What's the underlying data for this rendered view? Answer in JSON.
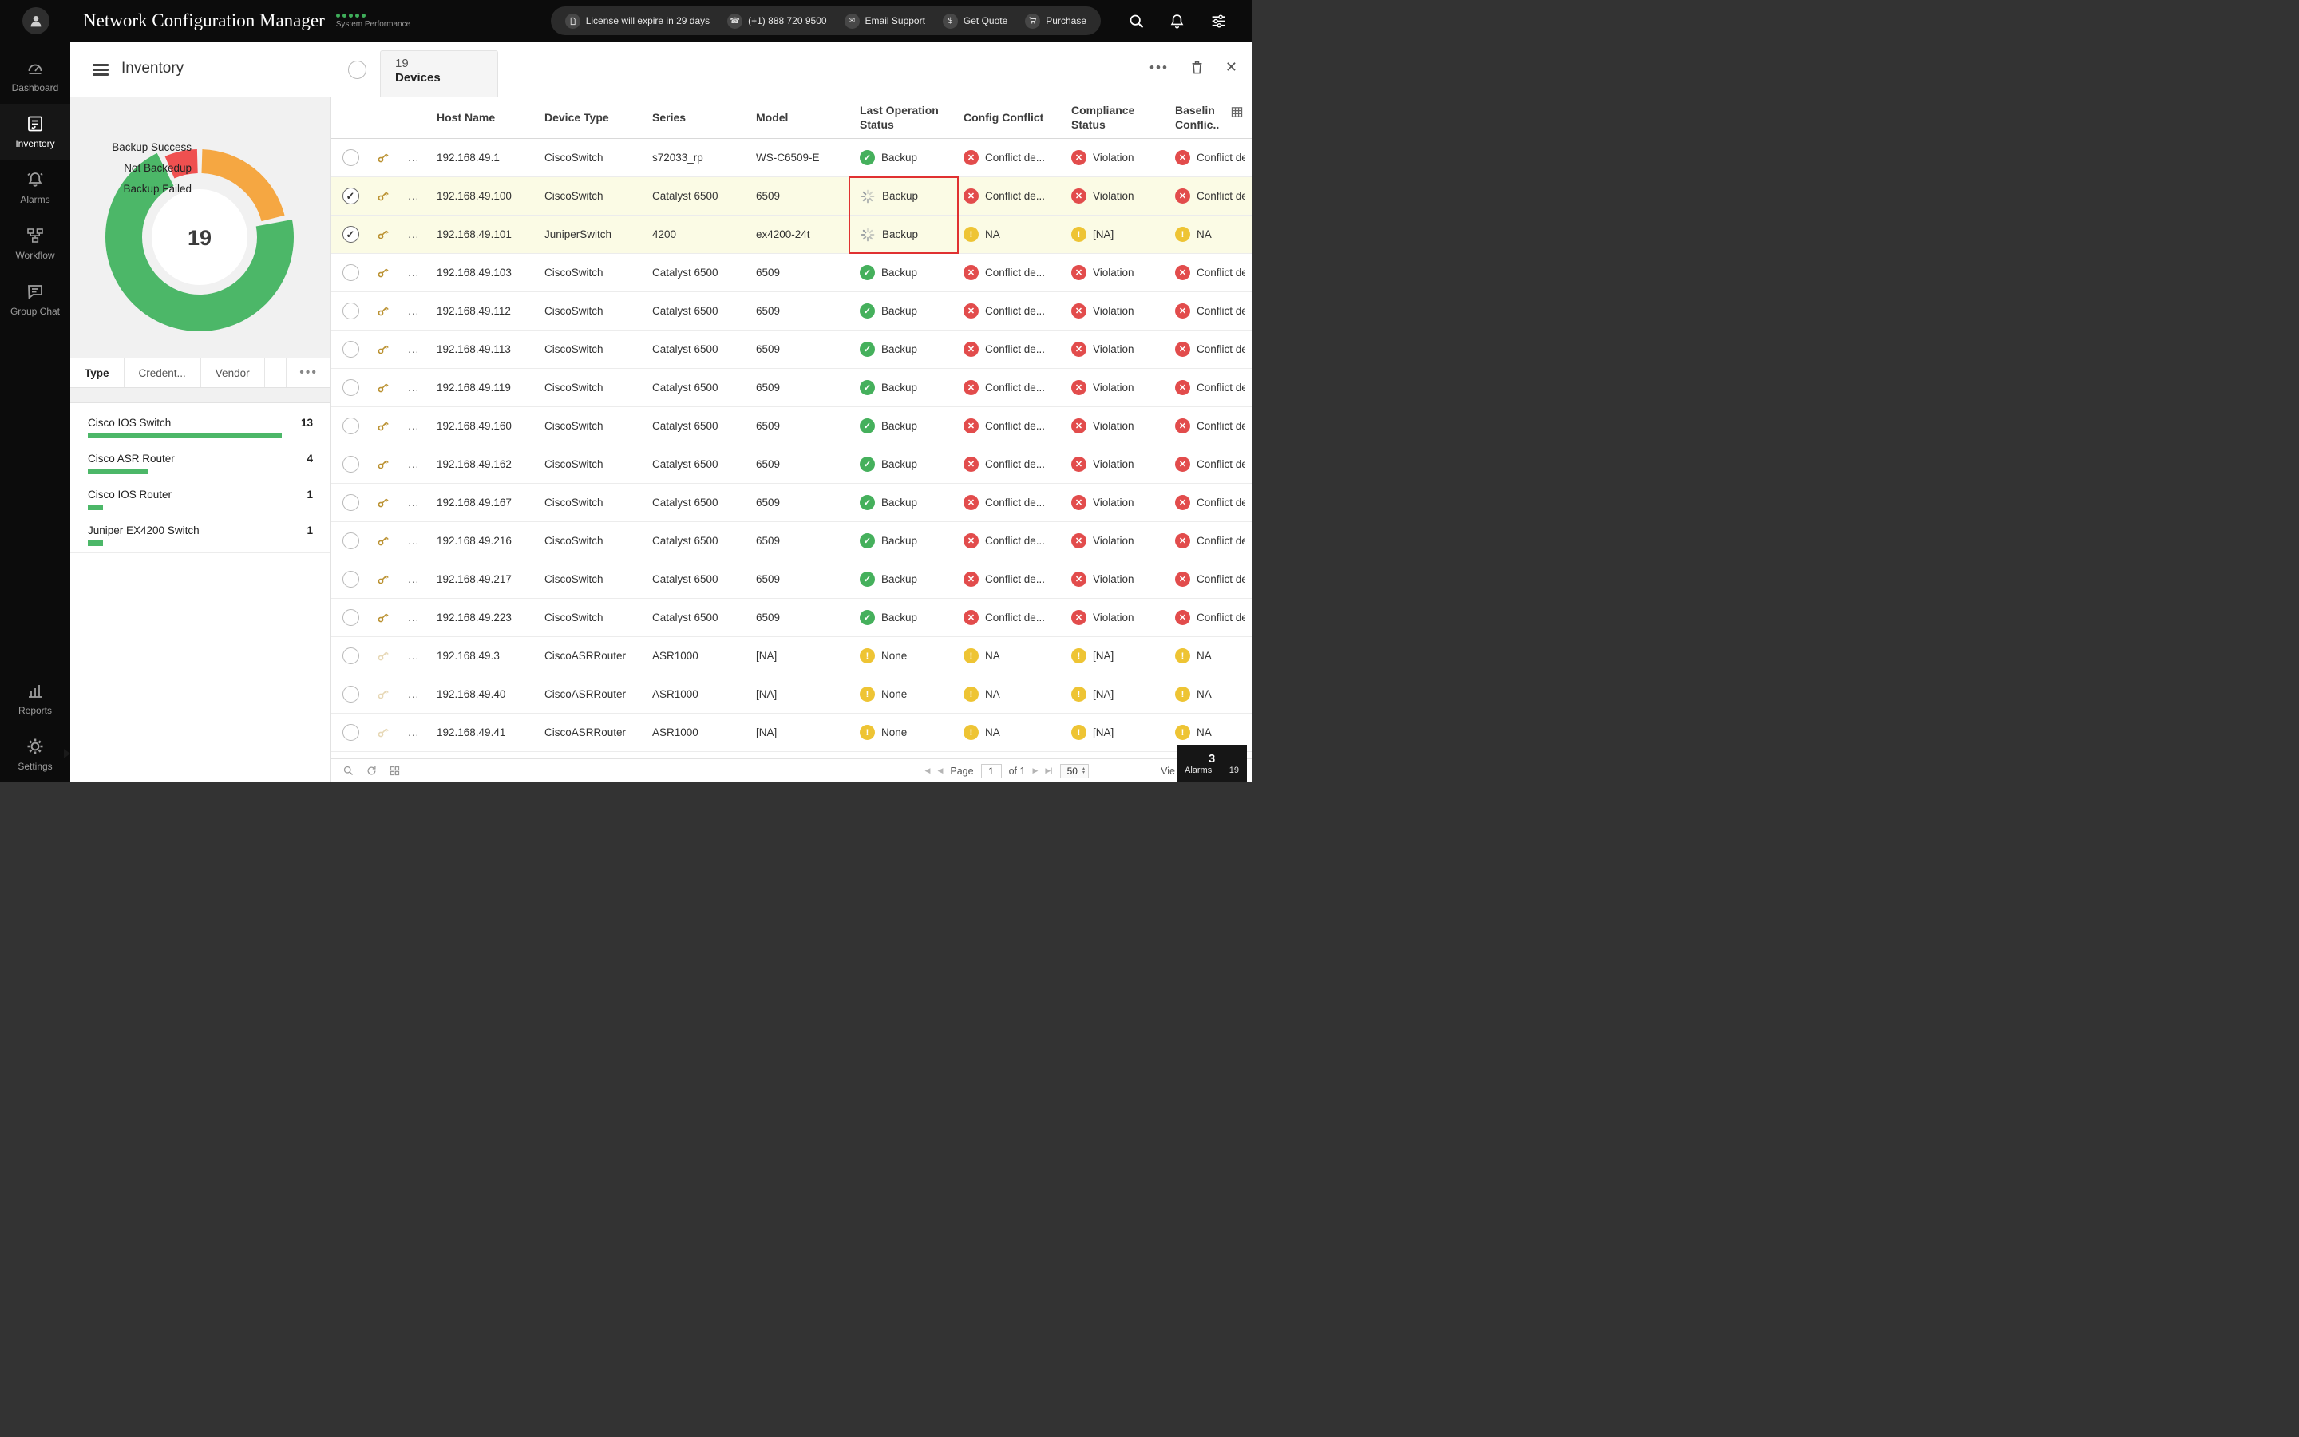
{
  "header": {
    "title": "Network Configuration Manager",
    "subtitle": "System Performance",
    "performance_dots": 5,
    "notices": [
      {
        "icon": "license-icon",
        "label": "License will expire in 29 days"
      },
      {
        "icon": "phone-icon",
        "label": "(+1) 888 720 9500"
      },
      {
        "icon": "email-icon",
        "label": "Email Support"
      },
      {
        "icon": "quote-icon",
        "label": "Get Quote"
      },
      {
        "icon": "cart-icon",
        "label": "Purchase"
      }
    ]
  },
  "sidebar": {
    "items": [
      {
        "label": "Dashboard",
        "active": false
      },
      {
        "label": "Inventory",
        "active": true
      },
      {
        "label": "Alarms",
        "active": false
      },
      {
        "label": "Workflow",
        "active": false
      },
      {
        "label": "Group Chat",
        "active": false
      },
      {
        "label": "Reports",
        "active": false
      },
      {
        "label": "Settings",
        "active": false
      }
    ]
  },
  "toolbar": {
    "title": "Inventory",
    "tab_count": "19",
    "tab_label": "Devices"
  },
  "summary": {
    "chart": {
      "type": "donut",
      "total": "19",
      "segments": [
        {
          "label": "Backup Success",
          "color": "#4cb768",
          "percent": 70.5,
          "start": 22
        },
        {
          "label": "Not Backedup",
          "color": "#f5a742",
          "percent": 20.5,
          "start": 0.5
        },
        {
          "label": "Backup Failed",
          "color": "#ef5050",
          "percent": 6,
          "start": 93.5
        }
      ]
    },
    "tabs": [
      "Type",
      "Credent...",
      "Vendor"
    ],
    "breakdown": [
      {
        "label": "Cisco IOS Switch",
        "count": 13
      },
      {
        "label": "Cisco ASR Router",
        "count": 4
      },
      {
        "label": "Cisco IOS Router",
        "count": 1
      },
      {
        "label": "Juniper EX4200 Switch",
        "count": 1
      }
    ]
  },
  "table": {
    "row_menu": "...",
    "columns": [
      "Host Name",
      "Device Type",
      "Series",
      "Model",
      "Last Operation Status",
      "Config Conflict",
      "Compliance Status",
      "Baselin Conflic.."
    ],
    "rows": [
      {
        "host": "192.168.49.1",
        "device_type": "CiscoSwitch",
        "series": "s72033_rp",
        "model": "WS-C6509-E",
        "op": {
          "label": "Backup",
          "state": "success"
        },
        "config": {
          "label": "Conflict de...",
          "state": "error"
        },
        "compliance": {
          "label": "Violation",
          "state": "error"
        },
        "baseline": {
          "label": "Conflict de",
          "state": "error"
        },
        "selected": false,
        "key_dim": false
      },
      {
        "host": "192.168.49.100",
        "device_type": "CiscoSwitch",
        "series": "Catalyst 6500",
        "model": "6509",
        "op": {
          "label": "Backup",
          "state": "progress"
        },
        "config": {
          "label": "Conflict de...",
          "state": "error"
        },
        "compliance": {
          "label": "Violation",
          "state": "error"
        },
        "baseline": {
          "label": "Conflict de",
          "state": "error"
        },
        "selected": true,
        "key_dim": false
      },
      {
        "host": "192.168.49.101",
        "device_type": "JuniperSwitch",
        "series": "4200",
        "model": "ex4200-24t",
        "op": {
          "label": "Backup",
          "state": "progress"
        },
        "config": {
          "label": "NA",
          "state": "warn"
        },
        "compliance": {
          "label": "[NA]",
          "state": "warn"
        },
        "baseline": {
          "label": "NA",
          "state": "warn"
        },
        "selected": true,
        "key_dim": false
      },
      {
        "host": "192.168.49.103",
        "device_type": "CiscoSwitch",
        "series": "Catalyst 6500",
        "model": "6509",
        "op": {
          "label": "Backup",
          "state": "success"
        },
        "config": {
          "label": "Conflict de...",
          "state": "error"
        },
        "compliance": {
          "label": "Violation",
          "state": "error"
        },
        "baseline": {
          "label": "Conflict de",
          "state": "error"
        },
        "selected": false,
        "key_dim": false
      },
      {
        "host": "192.168.49.112",
        "device_type": "CiscoSwitch",
        "series": "Catalyst 6500",
        "model": "6509",
        "op": {
          "label": "Backup",
          "state": "success"
        },
        "config": {
          "label": "Conflict de...",
          "state": "error"
        },
        "compliance": {
          "label": "Violation",
          "state": "error"
        },
        "baseline": {
          "label": "Conflict de",
          "state": "error"
        },
        "selected": false,
        "key_dim": false
      },
      {
        "host": "192.168.49.113",
        "device_type": "CiscoSwitch",
        "series": "Catalyst 6500",
        "model": "6509",
        "op": {
          "label": "Backup",
          "state": "success"
        },
        "config": {
          "label": "Conflict de...",
          "state": "error"
        },
        "compliance": {
          "label": "Violation",
          "state": "error"
        },
        "baseline": {
          "label": "Conflict de",
          "state": "error"
        },
        "selected": false,
        "key_dim": false
      },
      {
        "host": "192.168.49.119",
        "device_type": "CiscoSwitch",
        "series": "Catalyst 6500",
        "model": "6509",
        "op": {
          "label": "Backup",
          "state": "success"
        },
        "config": {
          "label": "Conflict de...",
          "state": "error"
        },
        "compliance": {
          "label": "Violation",
          "state": "error"
        },
        "baseline": {
          "label": "Conflict de",
          "state": "error"
        },
        "selected": false,
        "key_dim": false
      },
      {
        "host": "192.168.49.160",
        "device_type": "CiscoSwitch",
        "series": "Catalyst 6500",
        "model": "6509",
        "op": {
          "label": "Backup",
          "state": "success"
        },
        "config": {
          "label": "Conflict de...",
          "state": "error"
        },
        "compliance": {
          "label": "Violation",
          "state": "error"
        },
        "baseline": {
          "label": "Conflict de",
          "state": "error"
        },
        "selected": false,
        "key_dim": false
      },
      {
        "host": "192.168.49.162",
        "device_type": "CiscoSwitch",
        "series": "Catalyst 6500",
        "model": "6509",
        "op": {
          "label": "Backup",
          "state": "success"
        },
        "config": {
          "label": "Conflict de...",
          "state": "error"
        },
        "compliance": {
          "label": "Violation",
          "state": "error"
        },
        "baseline": {
          "label": "Conflict de",
          "state": "error"
        },
        "selected": false,
        "key_dim": false
      },
      {
        "host": "192.168.49.167",
        "device_type": "CiscoSwitch",
        "series": "Catalyst 6500",
        "model": "6509",
        "op": {
          "label": "Backup",
          "state": "success"
        },
        "config": {
          "label": "Conflict de...",
          "state": "error"
        },
        "compliance": {
          "label": "Violation",
          "state": "error"
        },
        "baseline": {
          "label": "Conflict de",
          "state": "error"
        },
        "selected": false,
        "key_dim": false
      },
      {
        "host": "192.168.49.216",
        "device_type": "CiscoSwitch",
        "series": "Catalyst 6500",
        "model": "6509",
        "op": {
          "label": "Backup",
          "state": "success"
        },
        "config": {
          "label": "Conflict de...",
          "state": "error"
        },
        "compliance": {
          "label": "Violation",
          "state": "error"
        },
        "baseline": {
          "label": "Conflict de",
          "state": "error"
        },
        "selected": false,
        "key_dim": false
      },
      {
        "host": "192.168.49.217",
        "device_type": "CiscoSwitch",
        "series": "Catalyst 6500",
        "model": "6509",
        "op": {
          "label": "Backup",
          "state": "success"
        },
        "config": {
          "label": "Conflict de...",
          "state": "error"
        },
        "compliance": {
          "label": "Violation",
          "state": "error"
        },
        "baseline": {
          "label": "Conflict de",
          "state": "error"
        },
        "selected": false,
        "key_dim": false
      },
      {
        "host": "192.168.49.223",
        "device_type": "CiscoSwitch",
        "series": "Catalyst 6500",
        "model": "6509",
        "op": {
          "label": "Backup",
          "state": "success"
        },
        "config": {
          "label": "Conflict de...",
          "state": "error"
        },
        "compliance": {
          "label": "Violation",
          "state": "error"
        },
        "baseline": {
          "label": "Conflict de",
          "state": "error"
        },
        "selected": false,
        "key_dim": false
      },
      {
        "host": "192.168.49.3",
        "device_type": "CiscoASRRouter",
        "series": "ASR1000",
        "model": "[NA]",
        "op": {
          "label": "None",
          "state": "warn"
        },
        "config": {
          "label": "NA",
          "state": "warn"
        },
        "compliance": {
          "label": "[NA]",
          "state": "warn"
        },
        "baseline": {
          "label": "NA",
          "state": "warn"
        },
        "selected": false,
        "key_dim": true
      },
      {
        "host": "192.168.49.40",
        "device_type": "CiscoASRRouter",
        "series": "ASR1000",
        "model": "[NA]",
        "op": {
          "label": "None",
          "state": "warn"
        },
        "config": {
          "label": "NA",
          "state": "warn"
        },
        "compliance": {
          "label": "[NA]",
          "state": "warn"
        },
        "baseline": {
          "label": "NA",
          "state": "warn"
        },
        "selected": false,
        "key_dim": true
      },
      {
        "host": "192.168.49.41",
        "device_type": "CiscoASRRouter",
        "series": "ASR1000",
        "model": "[NA]",
        "op": {
          "label": "None",
          "state": "warn"
        },
        "config": {
          "label": "NA",
          "state": "warn"
        },
        "compliance": {
          "label": "[NA]",
          "state": "warn"
        },
        "baseline": {
          "label": "NA",
          "state": "warn"
        },
        "selected": false,
        "key_dim": true
      }
    ]
  },
  "footer": {
    "page_label": "Page",
    "page_value": "1",
    "of_label": "of 1",
    "page_size": "50",
    "view_label": "Vie",
    "alarms_count": "3",
    "alarms_label": "Alarms",
    "alarms_extra": "19"
  },
  "colors": {
    "success": "#45b05c",
    "error": "#e24c4c",
    "warning": "#eec434",
    "selection": "#fbfbe5",
    "highlight_box": "#e03131",
    "bar": "#4cb768"
  }
}
